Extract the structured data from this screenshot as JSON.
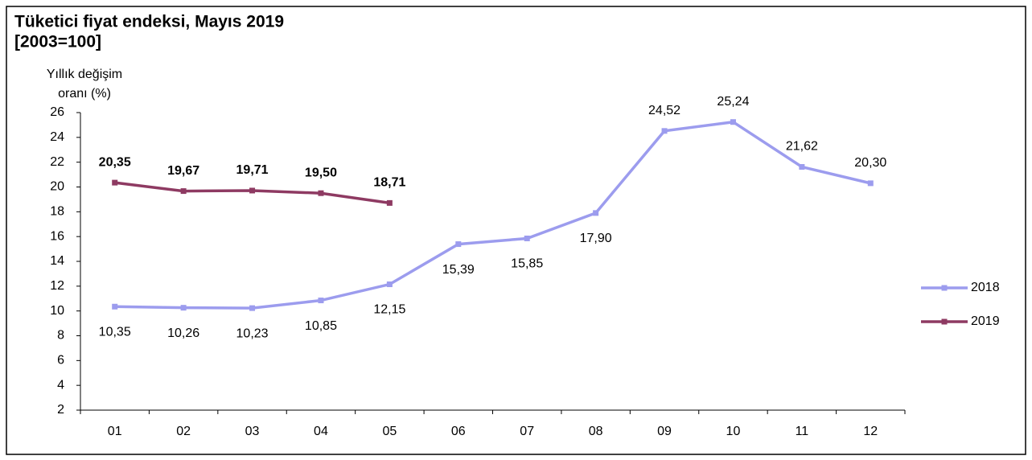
{
  "chart_data": {
    "type": "line",
    "title": "Tüketici fiyat endeksi, Mayıs 2019",
    "subtitle": "[2003=100]",
    "ylabel": [
      "Yıllık değişim",
      "oranı (%)"
    ],
    "categories": [
      "01",
      "02",
      "03",
      "04",
      "05",
      "06",
      "07",
      "08",
      "09",
      "10",
      "11",
      "12"
    ],
    "series": [
      {
        "name": "2018",
        "color": "#9c9cee",
        "values": [
          10.35,
          10.26,
          10.23,
          10.85,
          12.15,
          15.39,
          15.85,
          17.9,
          24.52,
          25.24,
          21.62,
          20.3
        ],
        "value_labels": [
          "10,35",
          "10,26",
          "10,23",
          "10,85",
          "12,15",
          "15,39",
          "15,85",
          "17,90",
          "24,52",
          "25,24",
          "21,62",
          "20,30"
        ]
      },
      {
        "name": "2019",
        "color": "#8e3a62",
        "values": [
          20.35,
          19.67,
          19.71,
          19.5,
          18.71,
          null,
          null,
          null,
          null,
          null,
          null,
          null
        ],
        "value_labels": [
          "20,35",
          "19,67",
          "19,71",
          "19,50",
          "18,71",
          null,
          null,
          null,
          null,
          null,
          null,
          null
        ]
      }
    ],
    "ylim": [
      2,
      26
    ],
    "yticks": [
      2,
      4,
      6,
      8,
      10,
      12,
      14,
      16,
      18,
      20,
      22,
      24,
      26
    ],
    "legend": "right"
  }
}
